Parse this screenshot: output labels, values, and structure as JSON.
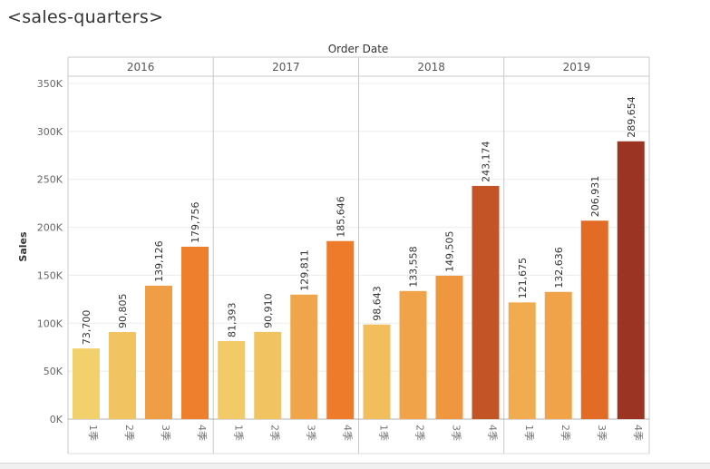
{
  "sheet": {
    "title": "<sales-quarters>"
  },
  "chart_data": {
    "type": "bar",
    "column_header": "Order Date",
    "ylabel": "Sales",
    "ylim": [
      0,
      355000
    ],
    "yticks": [
      {
        "value": 0,
        "label": "0K"
      },
      {
        "value": 50000,
        "label": "50K"
      },
      {
        "value": 100000,
        "label": "100K"
      },
      {
        "value": 150000,
        "label": "150K"
      },
      {
        "value": 200000,
        "label": "200K"
      },
      {
        "value": 250000,
        "label": "250K"
      },
      {
        "value": 300000,
        "label": "300K"
      },
      {
        "value": 350000,
        "label": "350K"
      }
    ],
    "grid": true,
    "color_scale": {
      "min_color": "#f2d06b",
      "mid_color": "#ee7626",
      "max_color": "#9c3424"
    },
    "panes": [
      {
        "year": "2016",
        "quarters": [
          "1季",
          "2季",
          "3季",
          "4季"
        ],
        "values": [
          73700,
          90805,
          139126,
          179756
        ],
        "labels": [
          "73,700",
          "90,805",
          "139,126",
          "179,756"
        ]
      },
      {
        "year": "2017",
        "quarters": [
          "1季",
          "2季",
          "3季",
          "4季"
        ],
        "values": [
          81393,
          90910,
          129811,
          185646
        ],
        "labels": [
          "81,393",
          "90,910",
          "129,811",
          "185,646"
        ]
      },
      {
        "year": "2018",
        "quarters": [
          "1季",
          "2季",
          "3季",
          "4季"
        ],
        "values": [
          98643,
          133558,
          149505,
          243174
        ],
        "labels": [
          "98,643",
          "133,558",
          "149,505",
          "243,174"
        ]
      },
      {
        "year": "2019",
        "quarters": [
          "1季",
          "2季",
          "3季",
          "4季"
        ],
        "values": [
          121675,
          132636,
          206931,
          289654
        ],
        "labels": [
          "121,675",
          "132,636",
          "206,931",
          "289,654"
        ]
      }
    ]
  }
}
